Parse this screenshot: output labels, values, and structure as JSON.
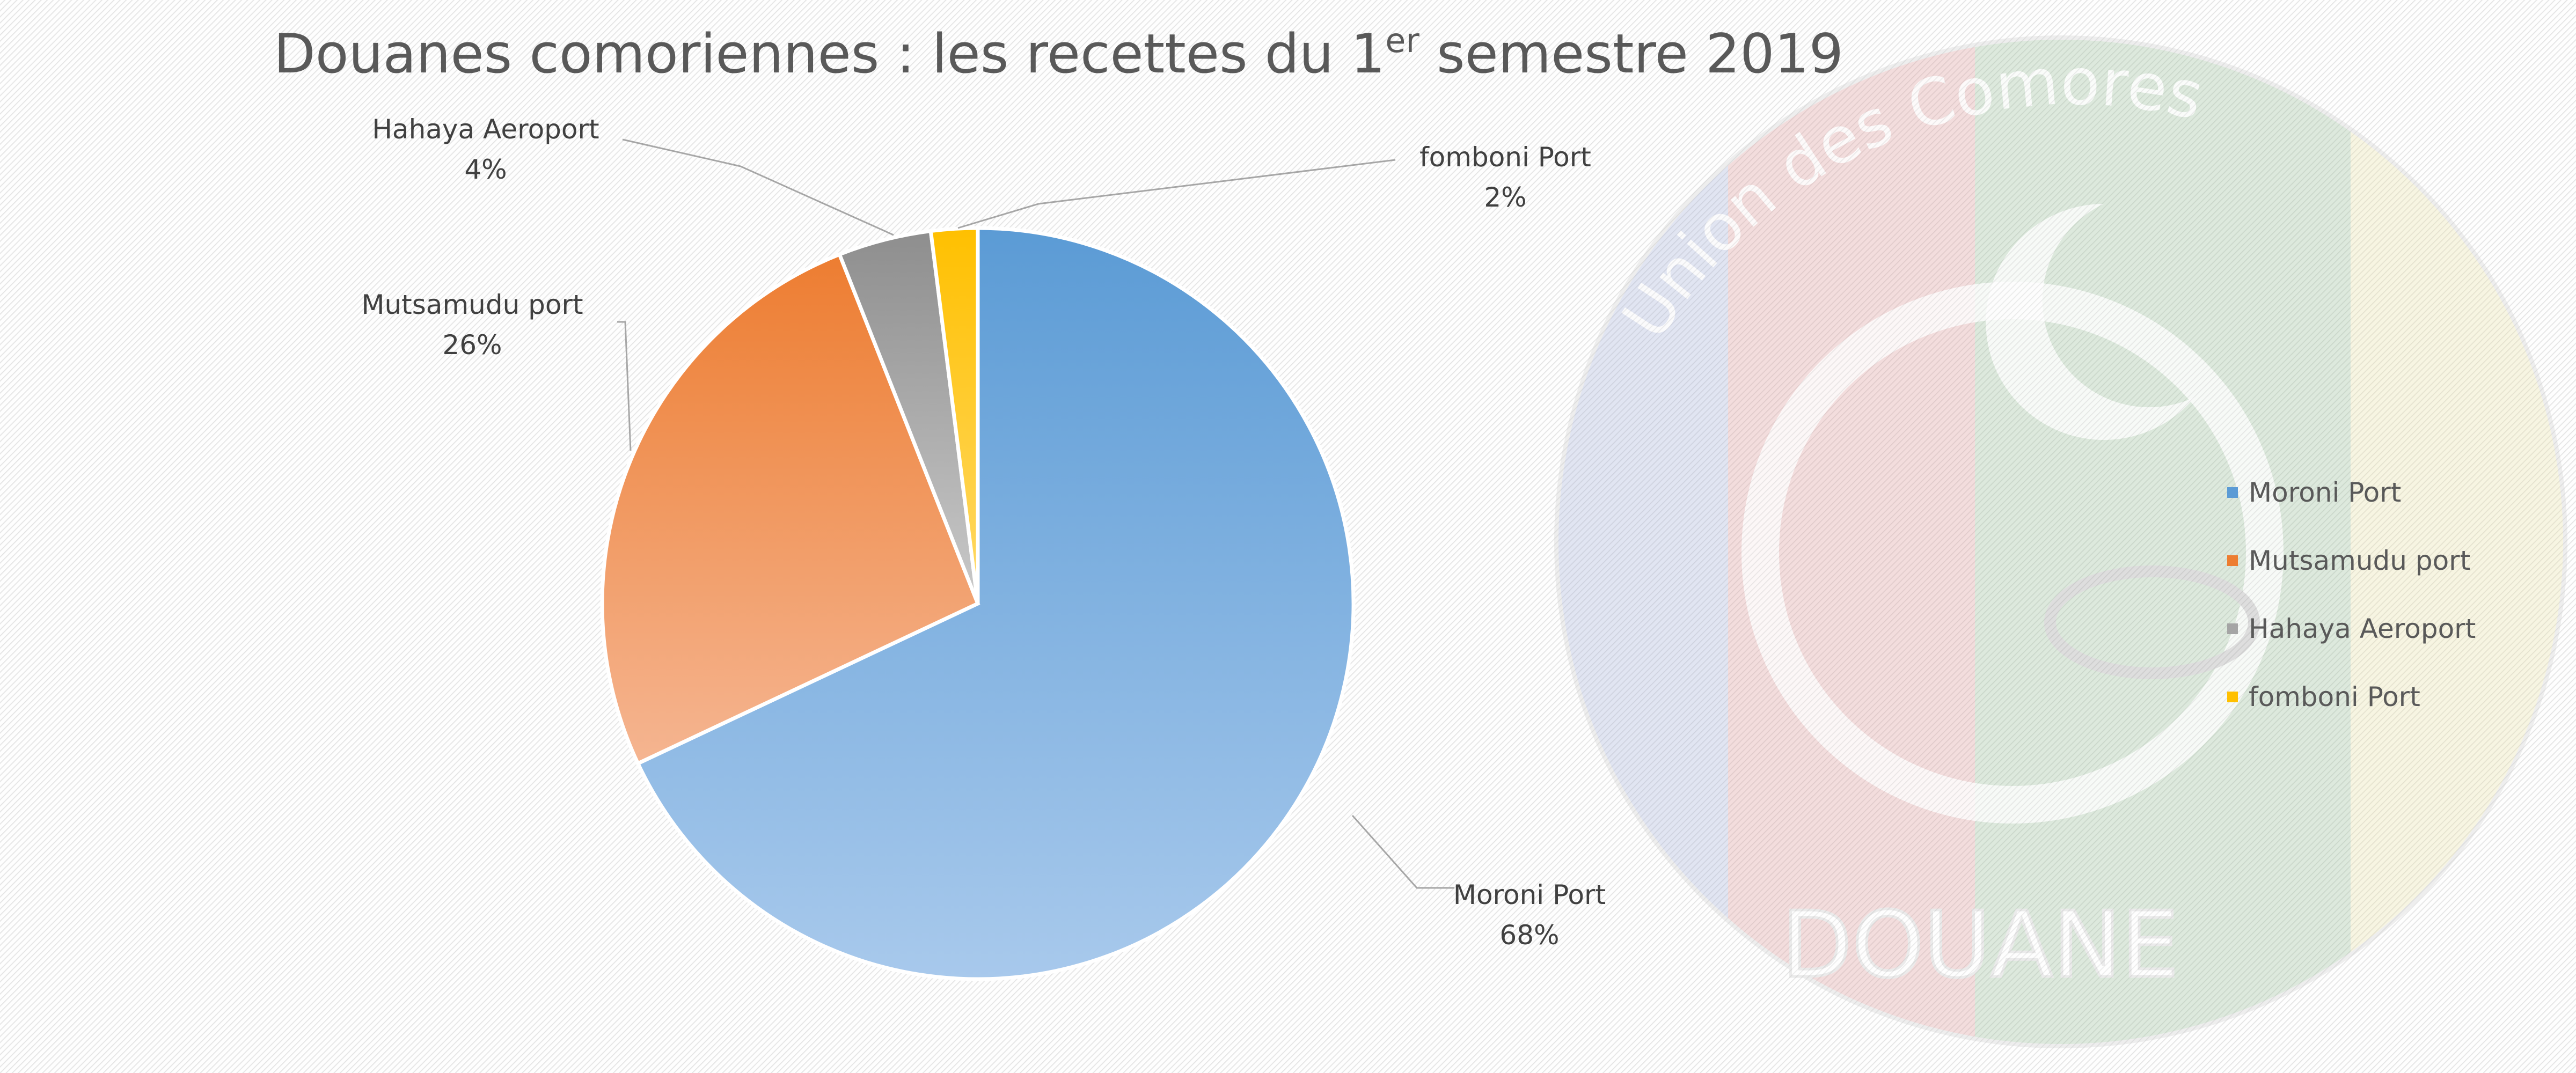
{
  "chart_data": {
    "type": "pie",
    "title": "Douanes comoriennes : les recettes du 1",
    "title_superscript": "er",
    "title_suffix": " semestre 2019",
    "categories": [
      "Moroni Port",
      "Mutsamudu port",
      "Hahaya Aeroport",
      "fomboni Port"
    ],
    "values": [
      68,
      26,
      4,
      2
    ],
    "value_labels": [
      "68%",
      "26%",
      "4%",
      "2%"
    ],
    "colors": [
      "#5b9bd5",
      "#ed7d31",
      "#a5a5a5",
      "#ffc000"
    ],
    "legend_position": "right"
  },
  "watermark": {
    "text": "DOUANE",
    "arc_text": "Union des Comores",
    "colors": [
      "#9aa7d4",
      "#d98c8c",
      "#8ab68a",
      "#e7de9b"
    ]
  }
}
